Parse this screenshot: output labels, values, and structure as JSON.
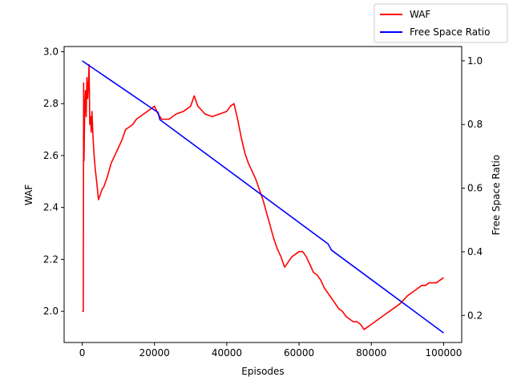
{
  "chart_data": {
    "type": "line",
    "xlabel": "Episodes",
    "ylabel": "WAF",
    "y2label": "Free Space Ratio",
    "xlim": [
      -5000,
      105000
    ],
    "ylim": [
      1.88,
      3.02
    ],
    "y2lim": [
      0.115,
      1.045
    ],
    "x_ticks": [
      0,
      20000,
      40000,
      60000,
      80000,
      100000
    ],
    "y_ticks": [
      2.0,
      2.2,
      2.4,
      2.6,
      2.8,
      3.0
    ],
    "y2_ticks": [
      0.2,
      0.4,
      0.6,
      0.8,
      1.0
    ],
    "x_tick_labels": [
      "0",
      "20000",
      "40000",
      "60000",
      "80000",
      "100000"
    ],
    "y_tick_labels": [
      "2.0",
      "2.2",
      "2.4",
      "2.6",
      "2.8",
      "3.0"
    ],
    "y2_tick_labels": [
      "0.2",
      "0.4",
      "0.6",
      "0.8",
      "1.0"
    ],
    "grid": false,
    "legend_position": "top-right",
    "series": [
      {
        "name": "WAF",
        "axis": "left",
        "color": "#ff0000",
        "x": [
          0,
          300,
          400,
          500,
          700,
          900,
          1100,
          1300,
          1500,
          1700,
          1900,
          2100,
          2300,
          2500,
          2700,
          3000,
          3300,
          3600,
          4000,
          4500,
          5000,
          5500,
          6000,
          7000,
          8000,
          9000,
          10000,
          11000,
          12000,
          13000,
          14000,
          15000,
          16000,
          17000,
          18000,
          19000,
          20000,
          21000,
          22000,
          24000,
          26000,
          28000,
          30000,
          31000,
          32000,
          34000,
          36000,
          38000,
          40000,
          41000,
          42000,
          43000,
          44000,
          45000,
          46000,
          47000,
          48000,
          49000,
          50000,
          51000,
          52000,
          53000,
          54000,
          55000,
          56000,
          57000,
          58000,
          59000,
          60000,
          61000,
          62000,
          63000,
          64000,
          65000,
          66000,
          67000,
          68000,
          69000,
          70000,
          71000,
          72000,
          73000,
          74000,
          75000,
          76000,
          77000,
          78000,
          79000,
          80000,
          82000,
          84000,
          86000,
          88000,
          90000,
          92000,
          93000,
          94000,
          95000,
          96000,
          98000,
          99000,
          100000
        ],
        "y": [
          2.0,
          2.0,
          2.88,
          2.58,
          2.78,
          2.85,
          2.75,
          2.9,
          2.82,
          2.87,
          2.95,
          2.72,
          2.75,
          2.69,
          2.77,
          2.67,
          2.6,
          2.55,
          2.5,
          2.43,
          2.45,
          2.47,
          2.48,
          2.52,
          2.57,
          2.6,
          2.63,
          2.66,
          2.7,
          2.71,
          2.72,
          2.74,
          2.75,
          2.76,
          2.77,
          2.78,
          2.79,
          2.76,
          2.74,
          2.74,
          2.76,
          2.77,
          2.79,
          2.83,
          2.79,
          2.76,
          2.75,
          2.76,
          2.77,
          2.79,
          2.8,
          2.74,
          2.67,
          2.61,
          2.57,
          2.54,
          2.51,
          2.47,
          2.43,
          2.38,
          2.33,
          2.28,
          2.24,
          2.21,
          2.17,
          2.19,
          2.21,
          2.22,
          2.23,
          2.23,
          2.21,
          2.18,
          2.15,
          2.14,
          2.12,
          2.09,
          2.07,
          2.05,
          2.03,
          2.01,
          2.0,
          1.98,
          1.97,
          1.96,
          1.96,
          1.95,
          1.93,
          1.94,
          1.95,
          1.97,
          1.99,
          2.01,
          2.03,
          2.06,
          2.08,
          2.09,
          2.1,
          2.1,
          2.11,
          2.11,
          2.12,
          2.13
        ]
      },
      {
        "name": "Free Space Ratio",
        "axis": "right",
        "color": "#0000ff",
        "x": [
          0,
          20000,
          21000,
          21500,
          68000,
          68500,
          69000,
          100000
        ],
        "y": [
          1.0,
          0.845,
          0.838,
          0.815,
          0.425,
          0.415,
          0.405,
          0.145
        ]
      }
    ]
  }
}
